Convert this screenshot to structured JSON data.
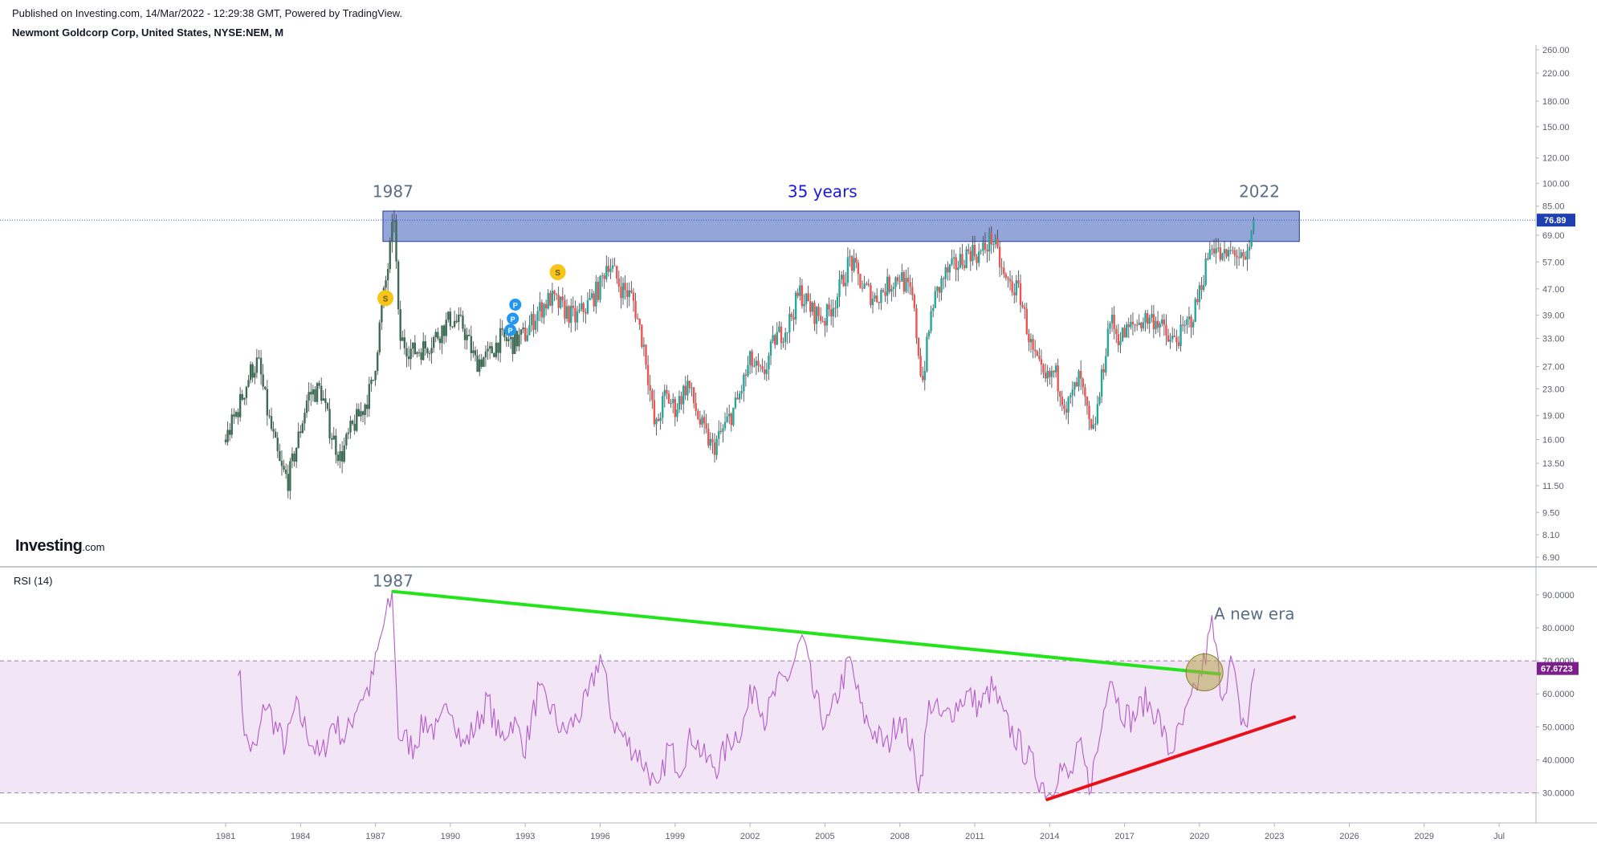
{
  "header": {
    "published_line": "Published on Investing.com, 14/Mar/2022 - 12:29:38 GMT, Powered by TradingView.",
    "symbol_line": "Newmont Goldcorp Corp, United States, NYSE:NEM, M"
  },
  "logo": {
    "name": "Investing",
    "domain": ".com"
  },
  "colors": {
    "up": "#26a69a",
    "down": "#ef5350",
    "wick": "#5d606b",
    "resistance_fill": "#8ea0d8",
    "resistance_stroke": "#1f3a93",
    "rsi_line": "#b35bc8",
    "rsi_band": "#f2e5f5",
    "green_trend": "#22e41a",
    "red_trend": "#e8101a",
    "circle": "#b5a24a",
    "price_tag": "#1e40af",
    "rsi_tag": "#7b1f8a"
  },
  "chart_data": [
    {
      "type": "candlestick",
      "title": "Newmont Goldcorp Corp, United States, NYSE:NEM, M",
      "scale": "log",
      "y_ticks": [
        6.9,
        8.1,
        9.5,
        11.5,
        13.5,
        16.0,
        19.0,
        23.0,
        27.0,
        33.0,
        39.0,
        47.0,
        57.0,
        69.0,
        85.0,
        100.0,
        120.0,
        150.0,
        180.0,
        220.0,
        260.0
      ],
      "ylim": [
        6.9,
        260
      ],
      "x_ticks": [
        "1981",
        "1984",
        "1987",
        "1990",
        "1993",
        "1996",
        "1999",
        "2002",
        "2005",
        "2008",
        "2011",
        "2014",
        "2017",
        "2020",
        "2023",
        "2026",
        "2029",
        "Jul"
      ],
      "last_price": 76.89,
      "last_price_label": "76.89",
      "price_path": [
        [
          1981.0,
          16
        ],
        [
          1981.5,
          20
        ],
        [
          1982.0,
          26
        ],
        [
          1982.3,
          28
        ],
        [
          1982.7,
          19
        ],
        [
          1983.2,
          13
        ],
        [
          1983.5,
          12
        ],
        [
          1983.9,
          16
        ],
        [
          1984.3,
          22
        ],
        [
          1984.8,
          23
        ],
        [
          1985.2,
          17
        ],
        [
          1985.6,
          14
        ],
        [
          1986.0,
          17
        ],
        [
          1986.5,
          20
        ],
        [
          1986.9,
          24
        ],
        [
          1987.2,
          38
        ],
        [
          1987.5,
          55
        ],
        [
          1987.75,
          80
        ],
        [
          1987.95,
          33
        ],
        [
          1988.5,
          30
        ],
        [
          1989.0,
          31
        ],
        [
          1989.5,
          34
        ],
        [
          1990.0,
          38
        ],
        [
          1990.5,
          36
        ],
        [
          1991.0,
          28
        ],
        [
          1991.5,
          29
        ],
        [
          1992.0,
          33
        ],
        [
          1992.5,
          32
        ],
        [
          1993.0,
          34
        ],
        [
          1993.5,
          40
        ],
        [
          1994.0,
          44
        ],
        [
          1994.5,
          41
        ],
        [
          1995.0,
          38
        ],
        [
          1995.5,
          42
        ],
        [
          1996.0,
          48
        ],
        [
          1996.3,
          58
        ],
        [
          1996.8,
          48
        ],
        [
          1997.3,
          44
        ],
        [
          1997.8,
          30
        ],
        [
          1998.2,
          17
        ],
        [
          1998.6,
          22
        ],
        [
          1999.0,
          20
        ],
        [
          1999.5,
          24
        ],
        [
          2000.0,
          18
        ],
        [
          2000.5,
          15
        ],
        [
          2000.9,
          17
        ],
        [
          2001.5,
          21
        ],
        [
          2002.0,
          28
        ],
        [
          2002.5,
          25
        ],
        [
          2003.0,
          33
        ],
        [
          2003.5,
          36
        ],
        [
          2004.0,
          46
        ],
        [
          2004.5,
          40
        ],
        [
          2005.0,
          38
        ],
        [
          2005.5,
          45
        ],
        [
          2006.0,
          58
        ],
        [
          2006.5,
          48
        ],
        [
          2007.0,
          44
        ],
        [
          2007.5,
          48
        ],
        [
          2008.0,
          52
        ],
        [
          2008.5,
          44
        ],
        [
          2008.9,
          24
        ],
        [
          2009.3,
          42
        ],
        [
          2009.8,
          52
        ],
        [
          2010.3,
          56
        ],
        [
          2010.8,
          62
        ],
        [
          2011.2,
          60
        ],
        [
          2011.7,
          68
        ],
        [
          2012.2,
          50
        ],
        [
          2012.8,
          46
        ],
        [
          2013.3,
          30
        ],
        [
          2013.8,
          24
        ],
        [
          2014.2,
          26
        ],
        [
          2014.7,
          20
        ],
        [
          2015.2,
          25
        ],
        [
          2015.7,
          16
        ],
        [
          2016.0,
          22
        ],
        [
          2016.4,
          38
        ],
        [
          2016.8,
          33
        ],
        [
          2017.3,
          36
        ],
        [
          2017.8,
          38
        ],
        [
          2018.3,
          38
        ],
        [
          2018.8,
          32
        ],
        [
          2019.3,
          34
        ],
        [
          2019.8,
          40
        ],
        [
          2020.1,
          50
        ],
        [
          2020.5,
          66
        ],
        [
          2020.9,
          58
        ],
        [
          2021.4,
          62
        ],
        [
          2021.8,
          55
        ],
        [
          2022.0,
          62
        ],
        [
          2022.2,
          76.89
        ]
      ],
      "annotations": [
        {
          "text": "1987",
          "x": 1987.7,
          "y": 95
        },
        {
          "text": "35 years",
          "x": 2004.9,
          "y": 95
        },
        {
          "text": "2022",
          "x": 2022.4,
          "y": 95
        }
      ],
      "resistance_zone": {
        "x": [
          1987.3,
          2024.0
        ],
        "y": [
          66,
          82
        ]
      },
      "event_markers": [
        {
          "label": "S",
          "x": 1987.4,
          "y": 44,
          "color": "#f5c518"
        },
        {
          "label": "S",
          "x": 1994.3,
          "y": 53,
          "color": "#f5c518"
        },
        {
          "label": "P",
          "x": 1992.6,
          "y": 42,
          "color": "#2196f3"
        },
        {
          "label": "P",
          "x": 1992.5,
          "y": 38,
          "color": "#2196f3"
        },
        {
          "label": "P",
          "x": 1992.4,
          "y": 35,
          "color": "#2196f3"
        }
      ]
    },
    {
      "type": "line",
      "name": "RSI (14)",
      "y_ticks": [
        30,
        40,
        50,
        60,
        70,
        80,
        90
      ],
      "y_tick_labels": [
        "30.0000",
        "40.0000",
        "50.0000",
        "60.0000",
        "70.0000",
        "80.0000",
        "90.0000"
      ],
      "ylim": [
        27,
        97
      ],
      "band": [
        30,
        70
      ],
      "last_value": 67.6723,
      "last_value_label": "67.6723",
      "rsi_path": [
        [
          1981.5,
          70
        ],
        [
          1981.8,
          46
        ],
        [
          1982.2,
          42
        ],
        [
          1982.6,
          58
        ],
        [
          1983.0,
          50
        ],
        [
          1983.4,
          44
        ],
        [
          1983.8,
          56
        ],
        [
          1984.3,
          48
        ],
        [
          1984.8,
          40
        ],
        [
          1985.3,
          52
        ],
        [
          1985.8,
          46
        ],
        [
          1986.3,
          58
        ],
        [
          1986.8,
          62
        ],
        [
          1987.3,
          80
        ],
        [
          1987.7,
          90
        ],
        [
          1987.9,
          48
        ],
        [
          1988.5,
          44
        ],
        [
          1989.0,
          52
        ],
        [
          1989.5,
          48
        ],
        [
          1990.0,
          58
        ],
        [
          1990.5,
          44
        ],
        [
          1991.0,
          50
        ],
        [
          1991.5,
          58
        ],
        [
          1992.0,
          46
        ],
        [
          1992.5,
          52
        ],
        [
          1993.0,
          44
        ],
        [
          1993.5,
          60
        ],
        [
          1994.0,
          56
        ],
        [
          1994.5,
          48
        ],
        [
          1995.0,
          52
        ],
        [
          1995.5,
          58
        ],
        [
          1996.0,
          72
        ],
        [
          1996.5,
          52
        ],
        [
          1997.0,
          46
        ],
        [
          1997.5,
          42
        ],
        [
          1998.0,
          36
        ],
        [
          1998.3,
          28
        ],
        [
          1998.7,
          44
        ],
        [
          1999.2,
          38
        ],
        [
          1999.7,
          48
        ],
        [
          2000.2,
          40
        ],
        [
          2000.7,
          38
        ],
        [
          2001.2,
          46
        ],
        [
          2001.7,
          50
        ],
        [
          2002.2,
          64
        ],
        [
          2002.6,
          52
        ],
        [
          2003.1,
          62
        ],
        [
          2003.6,
          66
        ],
        [
          2004.1,
          77
        ],
        [
          2004.6,
          58
        ],
        [
          2005.1,
          50
        ],
        [
          2005.6,
          62
        ],
        [
          2006.0,
          70
        ],
        [
          2006.5,
          54
        ],
        [
          2007.0,
          48
        ],
        [
          2007.5,
          44
        ],
        [
          2008.0,
          54
        ],
        [
          2008.4,
          46
        ],
        [
          2008.8,
          32
        ],
        [
          2009.2,
          58
        ],
        [
          2009.7,
          52
        ],
        [
          2010.2,
          56
        ],
        [
          2010.7,
          60
        ],
        [
          2011.2,
          56
        ],
        [
          2011.7,
          62
        ],
        [
          2012.2,
          52
        ],
        [
          2012.7,
          46
        ],
        [
          2013.2,
          40
        ],
        [
          2013.6,
          34
        ],
        [
          2014.0,
          30
        ],
        [
          2014.4,
          38
        ],
        [
          2014.8,
          34
        ],
        [
          2015.2,
          44
        ],
        [
          2015.6,
          32
        ],
        [
          2016.0,
          46
        ],
        [
          2016.4,
          68
        ],
        [
          2016.8,
          56
        ],
        [
          2017.3,
          52
        ],
        [
          2017.8,
          58
        ],
        [
          2018.3,
          54
        ],
        [
          2018.8,
          42
        ],
        [
          2019.3,
          50
        ],
        [
          2019.8,
          60
        ],
        [
          2020.2,
          70
        ],
        [
          2020.5,
          81
        ],
        [
          2020.9,
          60
        ],
        [
          2021.3,
          70
        ],
        [
          2021.6,
          54
        ],
        [
          2021.9,
          50
        ],
        [
          2022.2,
          67.67
        ]
      ],
      "annotations": [
        {
          "text": "1987",
          "x": 1987.7,
          "y": 94
        },
        {
          "text": "A new era",
          "x": 2022.2,
          "y": 84
        }
      ],
      "trendlines": [
        {
          "color": "green",
          "from": [
            1987.7,
            91
          ],
          "to": [
            2020.8,
            66
          ]
        },
        {
          "color": "red",
          "from": [
            2013.9,
            28
          ],
          "to": [
            2023.8,
            53
          ]
        }
      ],
      "highlight_circle": {
        "x": 2020.2,
        "y": 66.5
      }
    }
  ]
}
